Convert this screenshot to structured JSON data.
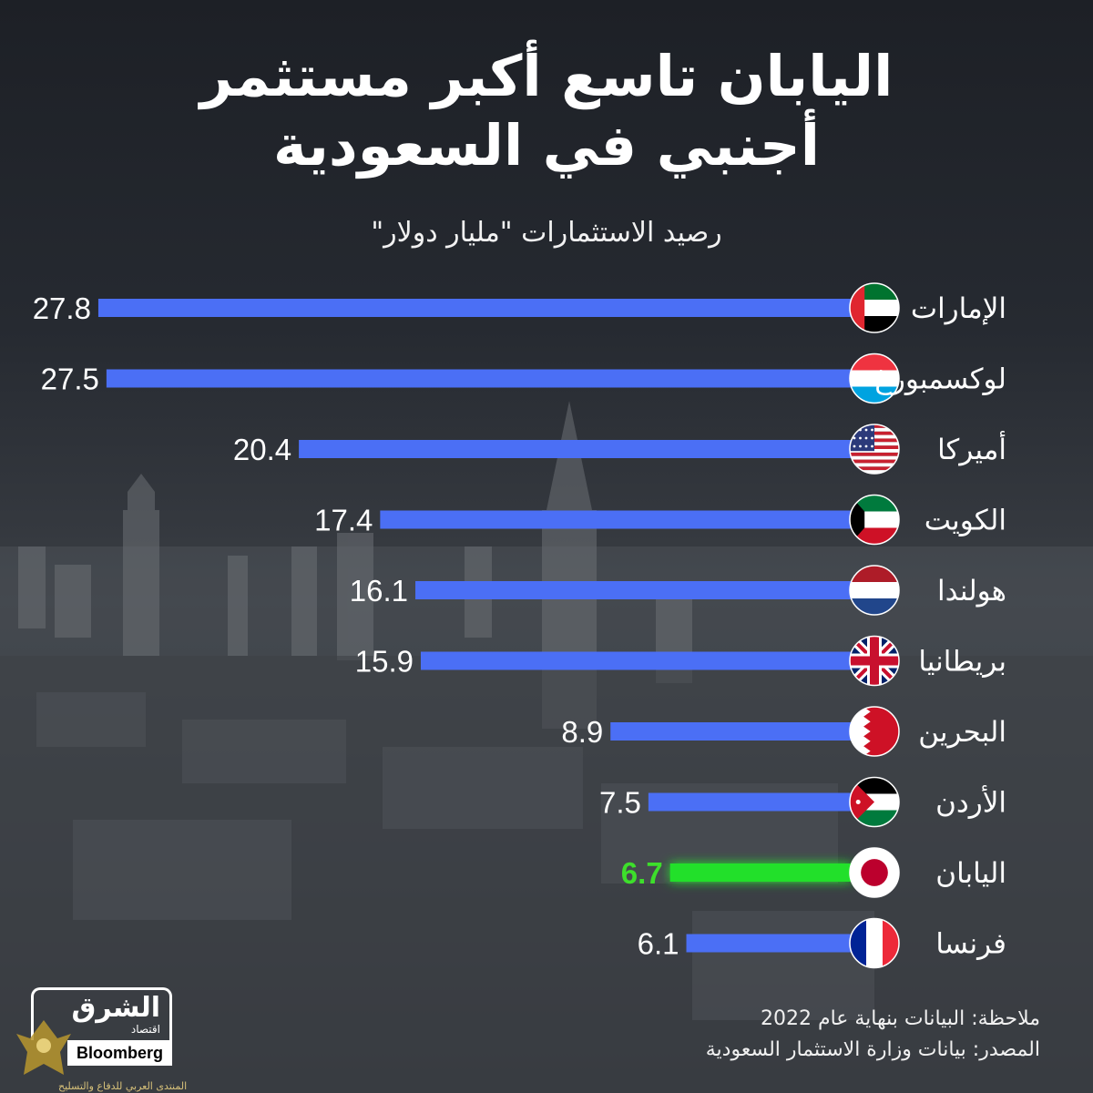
{
  "title_line1": "اليابان تاسع أكبر مستثمر",
  "title_line2": "أجنبي في السعودية",
  "subtitle": "رصيد الاستثمارات \"مليار دولار\"",
  "colors": {
    "bar": "#4b6ff5",
    "highlight_bar": "#22e02a",
    "highlight_text": "#3ddf2b",
    "background": "#262a31"
  },
  "chart_data": {
    "type": "bar",
    "orientation": "horizontal",
    "subtitle": "رصيد الاستثمارات \"مليار دولار\"",
    "unit": "مليار دولار",
    "categories": [
      "الإمارات",
      "لوكسمبورغ",
      "أميركا",
      "الكويت",
      "هولندا",
      "بريطانيا",
      "البحرين",
      "الأردن",
      "اليابان",
      "فرنسا"
    ],
    "values": [
      27.8,
      27.5,
      20.4,
      17.4,
      16.1,
      15.9,
      8.9,
      7.5,
      6.7,
      6.1
    ],
    "value_labels": [
      "27.8",
      "27.5",
      "20.4",
      "17.4",
      "16.1",
      "15.9",
      "8.9",
      "7.5",
      "6.7",
      "6.1"
    ],
    "flags": [
      "uae-flag-icon",
      "luxembourg-flag-icon",
      "usa-flag-icon",
      "kuwait-flag-icon",
      "netherlands-flag-icon",
      "uk-flag-icon",
      "bahrain-flag-icon",
      "jordan-flag-icon",
      "japan-flag-icon",
      "france-flag-icon"
    ],
    "highlight_category": "اليابان",
    "xlim": [
      0,
      30
    ],
    "grid": false,
    "legend": "none"
  },
  "footer": {
    "note": "ملاحظة: البيانات بنهاية عام 2022",
    "source": "المصدر: بيانات وزارة الاستثمار السعودية"
  },
  "logo": {
    "brand": "الشرق",
    "brand_sub": "اقتصاد",
    "partner": "Bloomberg"
  },
  "watermark": {
    "text": "المنتدى العربي للدفاع والتسليح"
  }
}
